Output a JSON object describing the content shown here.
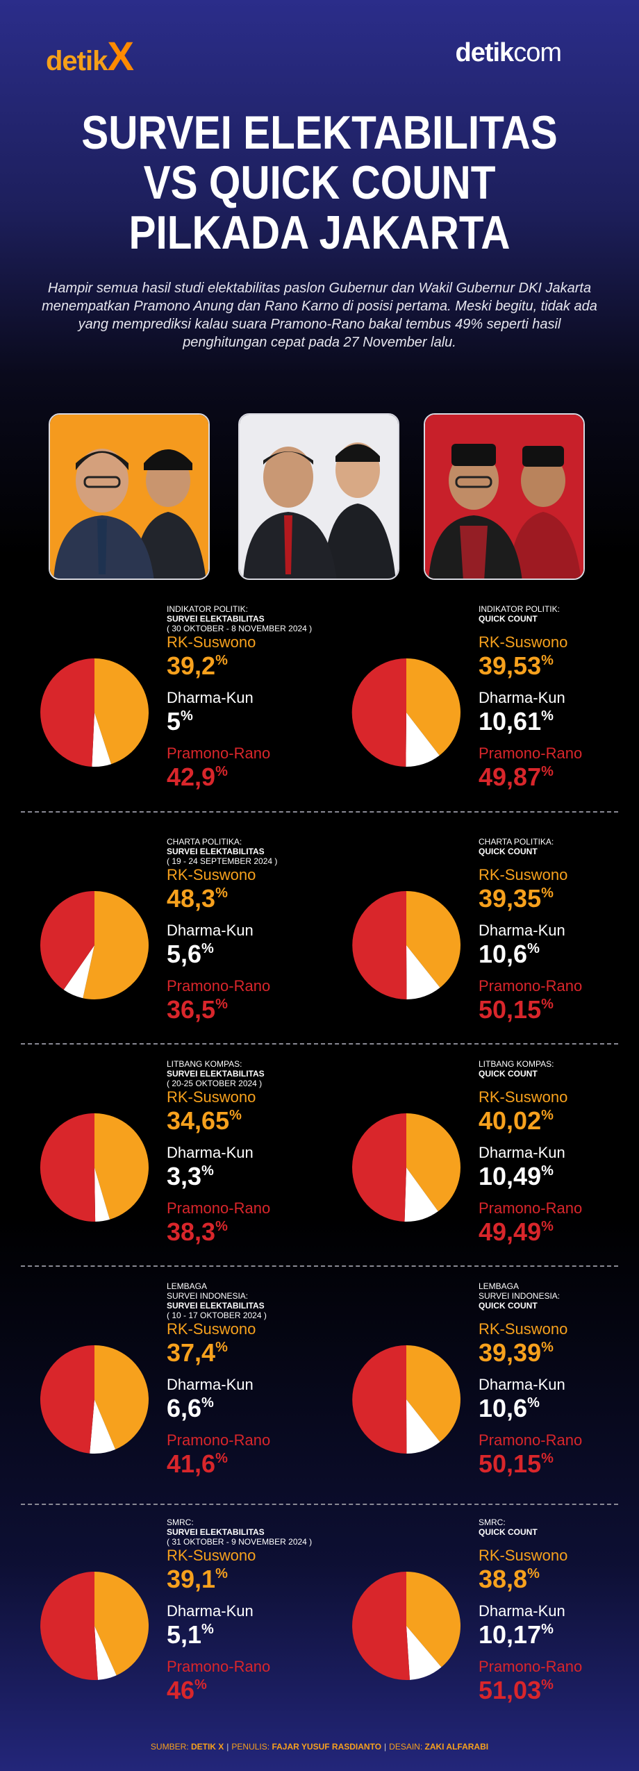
{
  "brand": {
    "left_main": "detik",
    "left_x": "X",
    "right_main": "detik",
    "right_com": "com"
  },
  "title": {
    "line1": "SURVEI ELEKTABILITAS",
    "line2": "VS QUICK COUNT",
    "line3": "PILKADA JAKARTA"
  },
  "intro": "Hampir semua hasil studi elektabilitas paslon Gubernur dan Wakil Gubernur DKI Jakarta menempatkan Pramono Anung dan Rano Karno di posisi pertama. Meski begitu, tidak ada yang memprediksi kalau suara Pramono-Rano bakal tembus 49% seperti hasil penghitungan cepat pada 27 November lalu.",
  "colors": {
    "rk": "#f7a11d",
    "dk": "#ffffff",
    "pr": "#d9262b"
  },
  "labels": {
    "rk": "RK-Suswono",
    "dk": "Dharma-Kun",
    "pr": "Pramono-Rano"
  },
  "rows": [
    {
      "survey": {
        "org": "INDIKATOR POLITIK:",
        "kind": "SURVEI ELEKTABILITAS",
        "period": "( 30 OKTOBER - 8 NOVEMBER 2024 )",
        "rk": "39,2",
        "dk": "5",
        "pr": "42,9"
      },
      "qc": {
        "org": "INDIKATOR POLITIK:",
        "kind": "QUICK COUNT",
        "rk": "39,53",
        "dk": "10,61",
        "pr": "49,87"
      }
    },
    {
      "survey": {
        "org": "CHARTA POLITIKA:",
        "kind": "SURVEI ELEKTABILITAS",
        "period": "( 19 - 24 SEPTEMBER 2024 )",
        "rk": "48,3",
        "dk": "5,6",
        "pr": "36,5"
      },
      "qc": {
        "org": "CHARTA POLITIKA:",
        "kind": "QUICK COUNT",
        "rk": "39,35",
        "dk": "10,6",
        "pr": "50,15"
      }
    },
    {
      "survey": {
        "org": "LITBANG KOMPAS:",
        "kind": "SURVEI ELEKTABILITAS",
        "period": "( 20-25 OKTOBER 2024 )",
        "rk": "34,65",
        "dk": "3,3",
        "pr": "38,3"
      },
      "qc": {
        "org": "LITBANG KOMPAS:",
        "kind": "QUICK COUNT",
        "rk": "40,02",
        "dk": "10,49",
        "pr": "49,49"
      }
    },
    {
      "survey": {
        "org": "LEMBAGA",
        "kind": "SURVEI ELEKTABILITAS",
        "period": "( 10 - 17 OKTOBER 2024 )",
        "rk": "37,4",
        "dk": "6,6",
        "pr": "41,6",
        "org2": "SURVEI INDONESIA:"
      },
      "qc": {
        "org": "LEMBAGA",
        "org2": "SURVEI INDONESIA:",
        "kind": "QUICK COUNT",
        "rk": "39,39",
        "dk": "10,6",
        "pr": "50,15"
      }
    },
    {
      "survey": {
        "org": "SMRC:",
        "kind": "SURVEI ELEKTABILITAS",
        "period": "( 31 OKTOBER - 9 NOVEMBER 2024 )",
        "rk": "39,1",
        "dk": "5,1",
        "pr": "46"
      },
      "qc": {
        "org": "SMRC:",
        "kind": "QUICK COUNT",
        "rk": "38,8",
        "dk": "10,17",
        "pr": "51,03"
      }
    }
  ],
  "footer": {
    "sumber_label": "SUMBER:",
    "sumber": "DETIK X",
    "penulis_label": "PENULIS:",
    "penulis": "FAJAR YUSUF RASDIANTO",
    "desain_label": "DESAIN:",
    "desain": "ZAKI ALFARABI"
  }
}
